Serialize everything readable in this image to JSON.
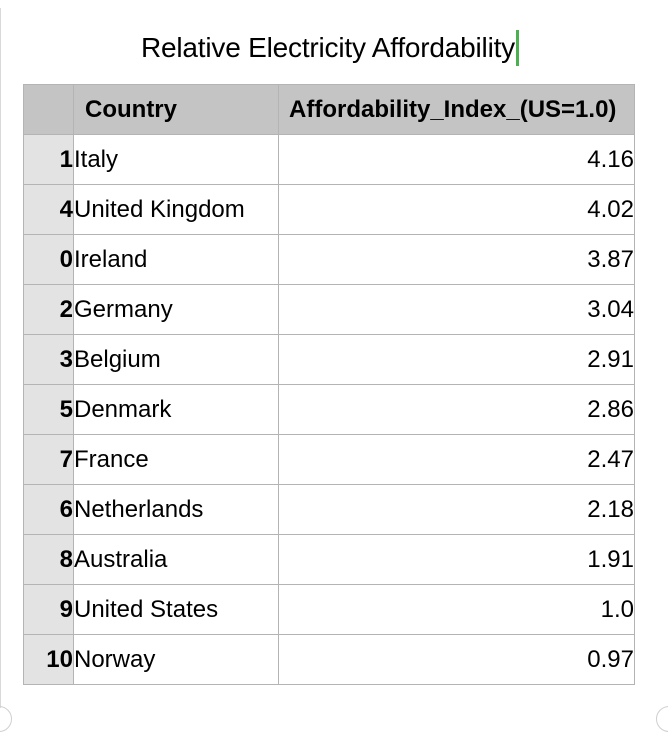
{
  "title": "Relative Electricity Affordability",
  "table": {
    "columns": [
      "",
      "Country",
      "Affordability_Index_(US=1.0)"
    ],
    "rows": [
      {
        "index": "1",
        "country": "Italy",
        "value": "4.16"
      },
      {
        "index": "4",
        "country": "United Kingdom",
        "value": "4.02"
      },
      {
        "index": "0",
        "country": "Ireland",
        "value": "3.87"
      },
      {
        "index": "2",
        "country": "Germany",
        "value": "3.04"
      },
      {
        "index": "3",
        "country": "Belgium",
        "value": "2.91"
      },
      {
        "index": "5",
        "country": "Denmark",
        "value": "2.86"
      },
      {
        "index": "7",
        "country": "France",
        "value": "2.47"
      },
      {
        "index": "6",
        "country": "Netherlands",
        "value": "2.18"
      },
      {
        "index": "8",
        "country": "Australia",
        "value": "1.91"
      },
      {
        "index": "9",
        "country": "United States",
        "value": "1.0"
      },
      {
        "index": "10",
        "country": "Norway",
        "value": "0.97"
      }
    ]
  },
  "colors": {
    "header_bg": "#c4c4c4",
    "index_bg": "#e3e3e3",
    "border": "#b4b4b4",
    "caret": "#4caf50"
  }
}
